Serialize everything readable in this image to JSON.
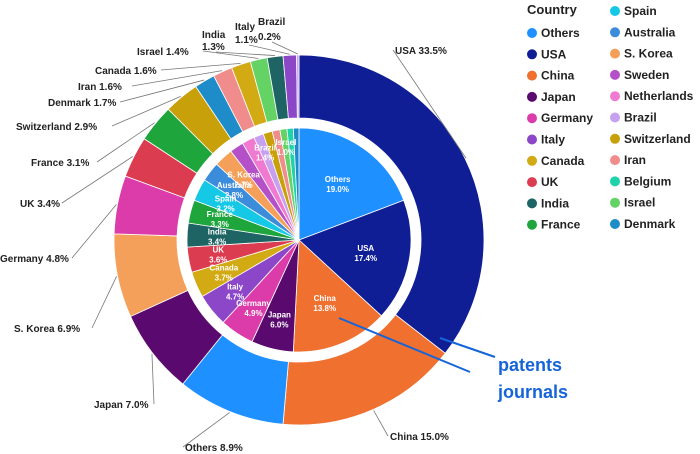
{
  "chart_data": {
    "type": "pie",
    "legend_title": "Country",
    "legend_position": "right",
    "colors": {
      "Others": "#1e90ff",
      "USA": "#101e96",
      "China": "#f07030",
      "Japan": "#5a0a6e",
      "Germany": "#dc3caa",
      "Italy": "#8c46c8",
      "Canada": "#d2aa14",
      "UK": "#dc3c50",
      "India": "#1e6464",
      "France": "#1ea53c",
      "Spain": "#14c8e6",
      "Australia": "#3c8cdc",
      "S. Korea": "#f5a05a",
      "Sweden": "#b450c8",
      "Netherlands": "#f07ad2",
      "Brazil": "#c8a0f0",
      "Switzerland": "#c8a00a",
      "Iran": "#f08c8c",
      "Belgium": "#1ed2aa",
      "Israel": "#64d264",
      "Denmark": "#1e8cc8"
    },
    "legend": [
      "Others",
      "USA",
      "China",
      "Japan",
      "Germany",
      "Italy",
      "Canada",
      "UK",
      "India",
      "France",
      "Spain",
      "Australia",
      "S. Korea",
      "Sweden",
      "Netherlands",
      "Brazil",
      "Switzerland",
      "Iran",
      "Belgium",
      "Israel",
      "Denmark"
    ],
    "series": [
      {
        "name": "patents",
        "slices": [
          {
            "label": "USA",
            "value": 33.5,
            "text": "USA 33.5%"
          },
          {
            "label": "China",
            "value": 15.0,
            "text": "China 15.0%"
          },
          {
            "label": "Others",
            "value": 8.9,
            "text": "Others 8.9%"
          },
          {
            "label": "Japan",
            "value": 7.0,
            "text": "Japan 7.0%"
          },
          {
            "label": "S. Korea",
            "value": 6.9,
            "text": "S. Korea 6.9%"
          },
          {
            "label": "Germany",
            "value": 4.8,
            "text": "Germany 4.8%"
          },
          {
            "label": "UK",
            "value": 3.4,
            "text": "UK 3.4%"
          },
          {
            "label": "France",
            "value": 3.1,
            "text": "France 3.1%"
          },
          {
            "label": "Switzerland",
            "value": 2.9,
            "text": "Switzerland 2.9%"
          },
          {
            "label": "Denmark",
            "value": 1.7,
            "text": "Denmark 1.7%"
          },
          {
            "label": "Iran",
            "value": 1.6,
            "text": "Iran 1.6%"
          },
          {
            "label": "Canada",
            "value": 1.6,
            "text": "Canada 1.6%"
          },
          {
            "label": "Israel",
            "value": 1.4,
            "text": "Israel 1.4%"
          },
          {
            "label": "India",
            "value": 1.3,
            "text": "India 1.3%"
          },
          {
            "label": "Italy",
            "value": 1.1,
            "text": "Italy 1.1%"
          },
          {
            "label": "Brazil",
            "value": 0.2,
            "text": "Brazil 0.2%"
          }
        ]
      },
      {
        "name": "journals",
        "slices": [
          {
            "label": "Others",
            "value": 19.0,
            "text": "Others\n19.0%"
          },
          {
            "label": "USA",
            "value": 17.4,
            "text": "USA\n17.4%"
          },
          {
            "label": "China",
            "value": 13.8,
            "text": "China\n13.8%"
          },
          {
            "label": "Japan",
            "value": 6.0,
            "text": "Japan\n6.0%"
          },
          {
            "label": "Germany",
            "value": 4.9,
            "text": "Germany\n4.9%"
          },
          {
            "label": "Italy",
            "value": 4.7,
            "text": "Italy\n4.7%"
          },
          {
            "label": "Canada",
            "value": 3.7,
            "text": "Canada\n3.7%"
          },
          {
            "label": "UK",
            "value": 3.6,
            "text": "UK\n3.6%"
          },
          {
            "label": "India",
            "value": 3.4,
            "text": "India\n3.4%"
          },
          {
            "label": "France",
            "value": 3.3,
            "text": "France\n3.3%"
          },
          {
            "label": "Spain",
            "value": 3.2,
            "text": "Spain\n3.2%"
          },
          {
            "label": "Australia",
            "value": 2.8,
            "text": "Australia\n2.8%"
          },
          {
            "label": "S. Korea",
            "value": 2.7,
            "text": "S. Korea\n2.7%"
          },
          {
            "label": "Sweden",
            "value": 2.0,
            "text": ""
          },
          {
            "label": "Netherlands",
            "value": 1.8,
            "text": ""
          },
          {
            "label": "Brazil",
            "value": 1.4,
            "text": "Brazil\n1.4%"
          },
          {
            "label": "Switzerland",
            "value": 1.3,
            "text": ""
          },
          {
            "label": "Iran",
            "value": 1.1,
            "text": ""
          },
          {
            "label": "Israel",
            "value": 1.0,
            "text": "Israel\n1.0%"
          },
          {
            "label": "Belgium",
            "value": 0.9,
            "text": ""
          },
          {
            "label": "Denmark",
            "value": 0.8,
            "text": ""
          }
        ]
      }
    ],
    "annotations": [
      "patents",
      "journals"
    ]
  }
}
